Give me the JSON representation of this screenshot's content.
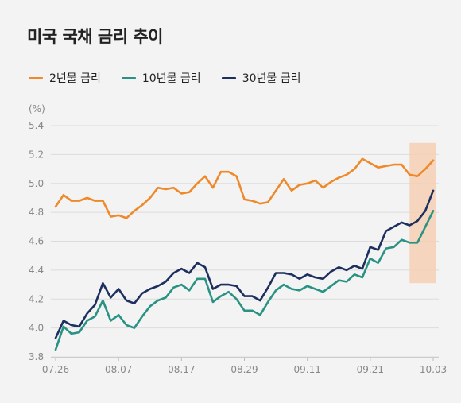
{
  "title": "미국 국채 금리 추이",
  "chart_data": {
    "type": "line",
    "unit": "(%)",
    "ylim": [
      3.8,
      5.4
    ],
    "yticks": [
      "5.4",
      "5.2",
      "5.0",
      "4.8",
      "4.6",
      "4.4",
      "4.2",
      "4.0",
      "3.8"
    ],
    "xtick_labels": [
      "07.26",
      "08.07",
      "08.17",
      "08.29",
      "09.11",
      "09.21",
      "10.03"
    ],
    "highlight_range": {
      "from_index": 45,
      "to_index": 55
    },
    "highlight_color": "#f4cfb3",
    "grid": true,
    "series": [
      {
        "name": "2년물 금리",
        "color": "#ee8a2b",
        "values": [
          4.84,
          4.92,
          4.88,
          4.88,
          4.9,
          4.88,
          4.88,
          4.77,
          4.78,
          4.76,
          4.81,
          4.85,
          4.9,
          4.97,
          4.96,
          4.97,
          4.93,
          4.94,
          5.0,
          5.05,
          4.97,
          5.08,
          5.08,
          5.05,
          4.89,
          4.88,
          4.86,
          4.87,
          4.95,
          5.03,
          4.95,
          4.99,
          5.0,
          5.02,
          4.97,
          5.01,
          5.04,
          5.06,
          5.1,
          5.17,
          5.14,
          5.11,
          5.12,
          5.13,
          5.13,
          5.06,
          5.05,
          5.1,
          5.16
        ]
      },
      {
        "name": "10년물 금리",
        "color": "#2a9283",
        "values": [
          3.85,
          4.01,
          3.96,
          3.97,
          4.05,
          4.08,
          4.19,
          4.05,
          4.09,
          4.02,
          4.0,
          4.08,
          4.15,
          4.19,
          4.21,
          4.28,
          4.3,
          4.26,
          4.34,
          4.34,
          4.18,
          4.22,
          4.25,
          4.2,
          4.12,
          4.12,
          4.09,
          4.18,
          4.26,
          4.3,
          4.27,
          4.26,
          4.29,
          4.27,
          4.25,
          4.29,
          4.33,
          4.32,
          4.37,
          4.35,
          4.48,
          4.45,
          4.55,
          4.56,
          4.61,
          4.59,
          4.59,
          4.7,
          4.81
        ]
      },
      {
        "name": "30년물 금리",
        "color": "#1c2f5e",
        "values": [
          3.93,
          4.05,
          4.02,
          4.01,
          4.1,
          4.16,
          4.31,
          4.21,
          4.27,
          4.19,
          4.17,
          4.24,
          4.27,
          4.29,
          4.32,
          4.38,
          4.41,
          4.38,
          4.45,
          4.42,
          4.27,
          4.3,
          4.3,
          4.29,
          4.22,
          4.22,
          4.19,
          4.28,
          4.38,
          4.38,
          4.37,
          4.34,
          4.37,
          4.35,
          4.34,
          4.39,
          4.42,
          4.4,
          4.43,
          4.41,
          4.56,
          4.54,
          4.67,
          4.7,
          4.73,
          4.71,
          4.74,
          4.81,
          4.95
        ]
      }
    ]
  }
}
